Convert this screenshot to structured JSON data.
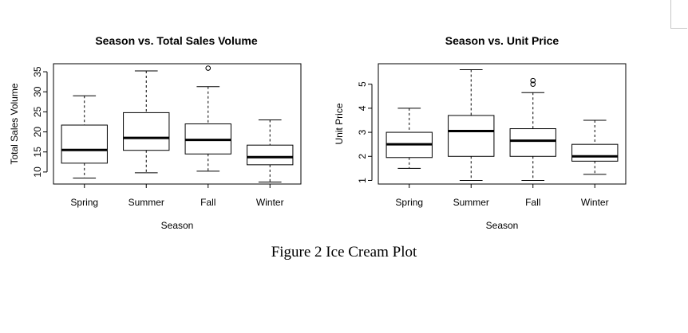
{
  "caption": "Figure 2 Ice Cream Plot",
  "chart_data": [
    {
      "type": "boxplot",
      "title": "Season vs. Total Sales Volume",
      "xlabel": "Season",
      "ylabel": "Total Sales Volume",
      "categories": [
        "Spring",
        "Summer",
        "Fall",
        "Winter"
      ],
      "yticks": [
        10,
        15,
        20,
        25,
        30,
        35
      ],
      "ylim": [
        7,
        37
      ],
      "boxes": [
        {
          "min": 8.5,
          "q1": 12.2,
          "median": 15.5,
          "q3": 21.7,
          "max": 29.0,
          "outliers": []
        },
        {
          "min": 9.8,
          "q1": 15.4,
          "median": 18.5,
          "q3": 24.8,
          "max": 35.2,
          "outliers": []
        },
        {
          "min": 10.2,
          "q1": 14.5,
          "median": 18.0,
          "q3": 22.0,
          "max": 31.3,
          "outliers": [
            35.9
          ]
        },
        {
          "min": 7.5,
          "q1": 11.8,
          "median": 13.7,
          "q3": 16.7,
          "max": 23.0,
          "outliers": []
        }
      ],
      "ytick_rotation": "vertical"
    },
    {
      "type": "boxplot",
      "title": "Season vs. Unit Price",
      "xlabel": "Season",
      "ylabel": "Unit Price",
      "categories": [
        "Spring",
        "Summer",
        "Fall",
        "Winter"
      ],
      "yticks": [
        1,
        2,
        3,
        4,
        5
      ],
      "ylim": [
        0.85,
        5.85
      ],
      "boxes": [
        {
          "min": 1.5,
          "q1": 1.95,
          "median": 2.5,
          "q3": 3.0,
          "max": 4.0,
          "outliers": []
        },
        {
          "min": 1.0,
          "q1": 2.0,
          "median": 3.05,
          "q3": 3.7,
          "max": 5.6,
          "outliers": []
        },
        {
          "min": 1.0,
          "q1": 2.0,
          "median": 2.65,
          "q3": 3.15,
          "max": 4.65,
          "outliers": [
            5.0,
            5.15
          ]
        },
        {
          "min": 1.25,
          "q1": 1.8,
          "median": 2.0,
          "q3": 2.5,
          "max": 3.5,
          "outliers": []
        }
      ],
      "ytick_rotation": "vertical"
    }
  ]
}
